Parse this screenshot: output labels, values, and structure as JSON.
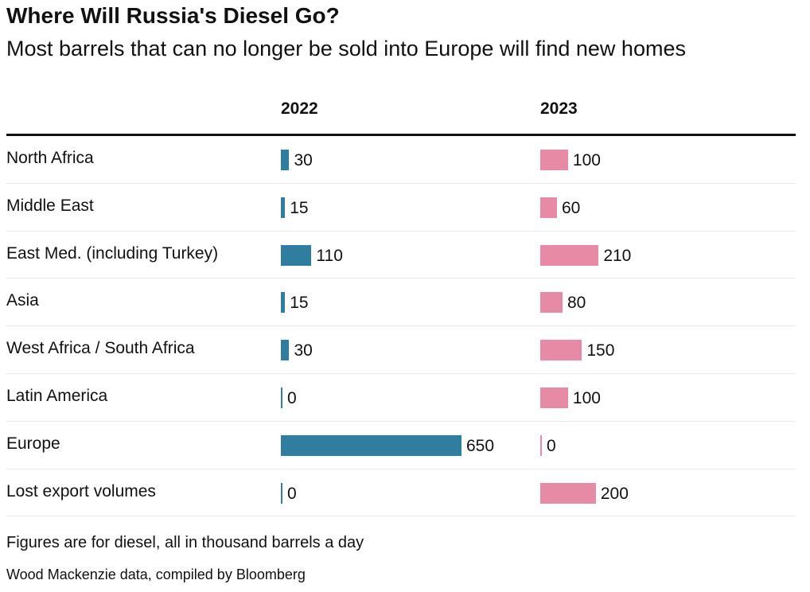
{
  "title": "Where Will Russia's Diesel Go?",
  "subtitle": "Most barrels that can no longer be sold into Europe will find new homes",
  "chart_data": {
    "type": "bar",
    "orientation": "horizontal",
    "categories": [
      "North Africa",
      "Middle East",
      "East Med. (including Turkey)",
      "Asia",
      "West Africa / South Africa",
      "Latin America",
      "Europe",
      "Lost export volumes"
    ],
    "series": [
      {
        "name": "2022",
        "color": "#2f7d9f",
        "values": [
          30,
          15,
          110,
          15,
          30,
          0,
          650,
          0
        ]
      },
      {
        "name": "2023",
        "color": "#e68aa5",
        "values": [
          100,
          60,
          210,
          80,
          150,
          100,
          0,
          200
        ]
      }
    ]
  },
  "note": "Figures are for diesel, all in thousand barrels a day",
  "source": "Wood Mackenzie data, compiled by Bloomberg"
}
